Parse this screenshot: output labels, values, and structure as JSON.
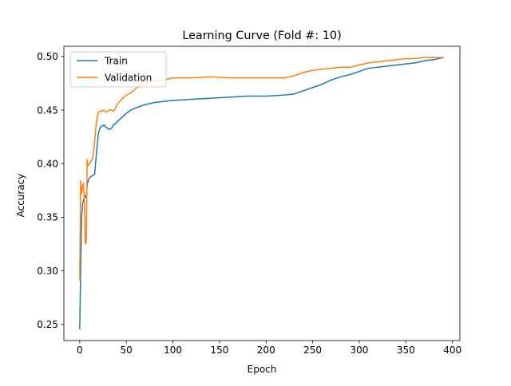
{
  "chart_data": {
    "type": "line",
    "title": "Learning Curve (Fold #: 10)",
    "xlabel": "Epoch",
    "ylabel": "Accuracy",
    "xlim": [
      -17,
      408
    ],
    "ylim": [
      0.235,
      0.5095
    ],
    "xticks": [
      0,
      50,
      100,
      150,
      200,
      250,
      300,
      350,
      400
    ],
    "yticks": [
      0.25,
      0.3,
      0.35,
      0.4,
      0.45,
      0.5
    ],
    "ytick_labels": [
      "0.25",
      "0.30",
      "0.35",
      "0.40",
      "0.45",
      "0.50"
    ],
    "grid": false,
    "legend_position": "top-left",
    "series": [
      {
        "name": "Train",
        "color": "#1f77b4",
        "x": [
          0,
          1,
          2,
          3,
          4,
          5,
          6,
          7,
          8,
          9,
          10,
          12,
          14,
          16,
          18,
          20,
          22,
          24,
          26,
          28,
          30,
          32,
          34,
          36,
          38,
          40,
          45,
          50,
          55,
          60,
          70,
          80,
          90,
          100,
          120,
          140,
          160,
          180,
          200,
          220,
          230,
          240,
          250,
          260,
          270,
          280,
          290,
          300,
          310,
          320,
          330,
          340,
          350,
          360,
          370,
          380,
          390
        ],
        "y": [
          0.246,
          0.3,
          0.35,
          0.362,
          0.366,
          0.369,
          0.37,
          0.368,
          0.38,
          0.384,
          0.386,
          0.388,
          0.389,
          0.39,
          0.41,
          0.428,
          0.434,
          0.435,
          0.436,
          0.434,
          0.433,
          0.432,
          0.433,
          0.436,
          0.437,
          0.439,
          0.443,
          0.447,
          0.45,
          0.452,
          0.455,
          0.457,
          0.458,
          0.459,
          0.46,
          0.461,
          0.462,
          0.463,
          0.463,
          0.464,
          0.465,
          0.468,
          0.471,
          0.474,
          0.478,
          0.481,
          0.483,
          0.486,
          0.489,
          0.49,
          0.491,
          0.492,
          0.493,
          0.494,
          0.496,
          0.497,
          0.499
        ]
      },
      {
        "name": "Validation",
        "color": "#ff7f0e",
        "x": [
          0,
          1,
          2,
          3,
          4,
          5,
          6,
          7,
          8,
          9,
          10,
          12,
          14,
          16,
          18,
          20,
          22,
          24,
          26,
          28,
          30,
          32,
          34,
          36,
          38,
          40,
          45,
          50,
          55,
          60,
          65,
          70,
          80,
          90,
          100,
          120,
          140,
          160,
          180,
          200,
          210,
          220,
          230,
          240,
          250,
          260,
          270,
          280,
          290,
          300,
          310,
          320,
          330,
          340,
          350,
          360,
          370,
          380,
          390
        ],
        "y": [
          0.292,
          0.384,
          0.372,
          0.378,
          0.382,
          0.364,
          0.325,
          0.327,
          0.404,
          0.398,
          0.399,
          0.402,
          0.405,
          0.42,
          0.44,
          0.448,
          0.449,
          0.449,
          0.45,
          0.448,
          0.449,
          0.45,
          0.45,
          0.449,
          0.451,
          0.455,
          0.46,
          0.464,
          0.466,
          0.47,
          0.473,
          0.475,
          0.477,
          0.478,
          0.48,
          0.48,
          0.481,
          0.48,
          0.48,
          0.48,
          0.48,
          0.48,
          0.482,
          0.485,
          0.487,
          0.488,
          0.489,
          0.49,
          0.49,
          0.492,
          0.494,
          0.495,
          0.496,
          0.497,
          0.498,
          0.498,
          0.499,
          0.499,
          0.499
        ]
      }
    ]
  }
}
